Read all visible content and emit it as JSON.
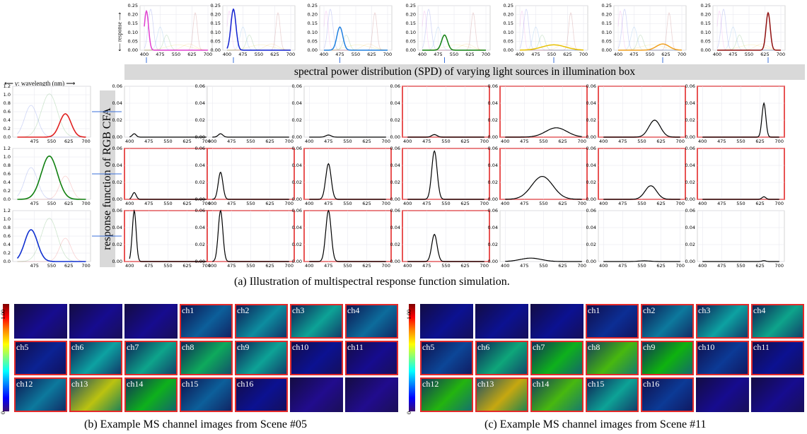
{
  "banner": "spectral power distribution (SPD) of varying light sources in illumination box",
  "vertical_banner": "response function of RGB CFA",
  "wavelength_label": "⟵ γ: wavelength (nm) ⟶",
  "response_label": "⟵ response ⟶",
  "captions": {
    "a": "(a) Illustration of multispectral response function simulation.",
    "b": "(b) Example MS channel images from Scene #05",
    "c": "(c) Example MS channel images from Scene #11"
  },
  "colorbar": {
    "max": "1.00",
    "min": "0"
  },
  "chart_data": {
    "type": "line",
    "x_ticks": [
      400,
      475,
      550,
      625,
      700
    ],
    "spd_ylim": [
      0,
      0.25
    ],
    "spd_yticks": [
      "0.00",
      "0.05",
      "0.10",
      "0.15",
      "0.20",
      "0.25"
    ],
    "cfa_ylim": [
      0,
      1.2
    ],
    "cfa_yticks": [
      "0.0",
      "0.2",
      "0.4",
      "0.6",
      "0.8",
      "1.0",
      "1.2"
    ],
    "prod_ylim": [
      0,
      0.06
    ],
    "prod_yticks": [
      "0.00",
      "0.02",
      "0.04",
      "0.06"
    ],
    "light_sources": [
      {
        "name": "violet",
        "color": "#e040d0",
        "peak": 410,
        "width": 10,
        "amp": 0.22
      },
      {
        "name": "blue",
        "color": "#1020d0",
        "peak": 430,
        "width": 12,
        "amp": 0.23
      },
      {
        "name": "cyan",
        "color": "#2080e0",
        "peak": 475,
        "width": 14,
        "amp": 0.13
      },
      {
        "name": "green",
        "color": "#108010",
        "peak": 505,
        "width": 14,
        "amp": 0.085
      },
      {
        "name": "yellow",
        "color": "#e8c000",
        "peak": 560,
        "width": 55,
        "amp": 0.03
      },
      {
        "name": "orange",
        "color": "#f0a020",
        "peak": 610,
        "width": 30,
        "amp": 0.035
      },
      {
        "name": "red",
        "color": "#901010",
        "peak": 640,
        "width": 10,
        "amp": 0.21
      }
    ],
    "cfa_channels": [
      {
        "name": "R",
        "color": "#e02020",
        "peak": 610,
        "width": 25,
        "amp": 0.55
      },
      {
        "name": "G",
        "color": "#108010",
        "peak": 540,
        "width": 35,
        "amp": 1.02
      },
      {
        "name": "B",
        "color": "#1030d0",
        "peak": 460,
        "width": 28,
        "amp": 0.75
      }
    ],
    "products": [
      {
        "peak": [
          418,
          432,
          475,
          505,
          600,
          600,
          640
        ],
        "amp": [
          0.004,
          0.004,
          0.0025,
          0.003,
          0.011,
          0.02,
          0.04
        ]
      },
      {
        "peak": [
          418,
          432,
          475,
          505,
          545,
          585,
          640
        ],
        "amp": [
          0.008,
          0.032,
          0.042,
          0.057,
          0.027,
          0.016,
          0.003
        ]
      },
      {
        "peak": [
          418,
          432,
          475,
          505,
          500,
          560,
          640
        ],
        "amp": [
          0.06,
          0.06,
          0.06,
          0.032,
          0.004,
          0.0008,
          0.001
        ]
      }
    ],
    "red_frames": [
      [
        false,
        false,
        false,
        true,
        true,
        true,
        true
      ],
      [
        true,
        true,
        true,
        true,
        true,
        true,
        true
      ],
      [
        true,
        true,
        true,
        true,
        false,
        false,
        false
      ]
    ]
  },
  "scene05": {
    "tiles": [
      "",
      "",
      "",
      "ch1",
      "ch2",
      "ch3",
      "ch4",
      "ch5",
      "ch6",
      "ch7",
      "ch8",
      "ch9",
      "ch10",
      "ch11",
      "ch12",
      "ch13",
      "ch14",
      "ch15",
      "ch16",
      "",
      ""
    ],
    "intensity": [
      0.02,
      0.02,
      0.02,
      0.18,
      0.25,
      0.3,
      0.2,
      0.08,
      0.28,
      0.32,
      0.4,
      0.3,
      0.05,
      0.02,
      0.22,
      0.75,
      0.5,
      0.18,
      0.05,
      0.0,
      0.0
    ]
  },
  "scene11": {
    "tiles": [
      "",
      "",
      "",
      "ch1",
      "ch2",
      "ch3",
      "ch4",
      "ch5",
      "ch6",
      "ch7",
      "ch8",
      "ch9",
      "ch10",
      "ch11",
      "ch12",
      "ch13",
      "ch14",
      "ch15",
      "ch16",
      "",
      ""
    ],
    "intensity": [
      0.05,
      0.05,
      0.05,
      0.1,
      0.22,
      0.28,
      0.32,
      0.14,
      0.35,
      0.5,
      0.6,
      0.52,
      0.12,
      0.05,
      0.55,
      0.8,
      0.6,
      0.3,
      0.12,
      0.02,
      0.02
    ]
  }
}
